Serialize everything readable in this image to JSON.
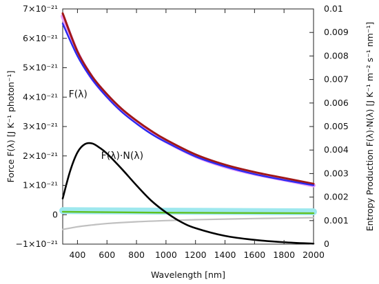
{
  "chart_data": {
    "type": "line",
    "xlabel": "Wavelength [nm]",
    "ylabel_left": "Force F(λ) [J K⁻¹ photon⁻¹]",
    "ylabel_right": "Entropy Production F(λ)·N(λ) [J K⁻¹ m⁻² s⁻¹ nm⁻¹]",
    "xlim": [
      300,
      2000
    ],
    "ylim_left": [
      -1e-21,
      7e-21
    ],
    "ylim_right": [
      0,
      0.01
    ],
    "x_ticks": [
      "400",
      "600",
      "800",
      "1000",
      "1200",
      "1400",
      "1600",
      "1800",
      "2000"
    ],
    "y_left_ticks": [
      "−1×10⁻²¹",
      "0",
      "1×10⁻²¹",
      "2×10⁻²¹",
      "3×10⁻²¹",
      "4×10⁻²¹",
      "5×10⁻²¹",
      "6×10⁻²¹",
      "7×10⁻²¹"
    ],
    "y_right_ticks": [
      "0",
      "0.001",
      "0.002",
      "0.003",
      "0.004",
      "0.005",
      "0.006",
      "0.007",
      "0.008",
      "0.009",
      "0.01"
    ],
    "grid": false,
    "annotations": [
      {
        "text": "F(λ)",
        "x": 340,
        "y": 4e-21
      },
      {
        "text": "F(λ)·N(λ)",
        "x": 560,
        "y": 1.9e-21
      }
    ],
    "series": [
      {
        "axis": "left",
        "color": "#e8a0ff",
        "x": [
          300,
          400,
          500,
          600,
          700,
          800,
          900,
          1000,
          1200,
          1400,
          1600,
          1800,
          2000
        ],
        "y": [
          6.75e-21,
          5.5e-21,
          4.65e-21,
          4.05e-21,
          3.55e-21,
          3.15e-21,
          2.8e-21,
          2.5e-21,
          2e-21,
          1.65e-21,
          1.4e-21,
          1.2e-21,
          1e-21
        ]
      },
      {
        "axis": "left",
        "color": "#a01818",
        "x": [
          300,
          400,
          500,
          600,
          700,
          800,
          900,
          1000,
          1200,
          1400,
          1600,
          1800,
          2000
        ],
        "y": [
          6.85e-21,
          5.55e-21,
          4.7e-21,
          4.1e-21,
          3.6e-21,
          3.2e-21,
          2.85e-21,
          2.55e-21,
          2.05e-21,
          1.7e-21,
          1.45e-21,
          1.25e-21,
          1.05e-21
        ]
      },
      {
        "axis": "left",
        "color": "#2a2aee",
        "x": [
          300,
          400,
          500,
          600,
          700,
          800,
          900,
          1000,
          1200,
          1400,
          1600,
          1800,
          2000
        ],
        "y": [
          6.5e-21,
          5.4e-21,
          4.6e-21,
          4e-21,
          3.5e-21,
          3.1e-21,
          2.75e-21,
          2.47e-21,
          1.98e-21,
          1.64e-21,
          1.38e-21,
          1.18e-21,
          1e-21
        ]
      },
      {
        "axis": "left",
        "color": "#9ee8ee",
        "x": [
          300,
          1000,
          2000
        ],
        "y": [
          1.4e-22,
          1.2e-22,
          1e-22
        ]
      },
      {
        "axis": "left",
        "color": "#60c020",
        "x": [
          300,
          1000,
          2000
        ],
        "y": [
          1e-22,
          7e-23,
          5e-23
        ]
      },
      {
        "axis": "left",
        "color": "#c0c0c0",
        "x": [
          300,
          400,
          500,
          600,
          800,
          1000,
          1200,
          1400,
          1600,
          1800,
          2000
        ],
        "y": [
          -5e-22,
          -4.1e-22,
          -3.5e-22,
          -3e-22,
          -2.4e-22,
          -2e-22,
          -1.7e-22,
          -1.5e-22,
          -1.3e-22,
          -1.15e-22,
          -1e-22
        ]
      },
      {
        "axis": "right",
        "color": "#000000",
        "x": [
          300,
          350,
          400,
          450,
          500,
          550,
          600,
          700,
          800,
          900,
          1000,
          1100,
          1200,
          1400,
          1600,
          1800,
          2000
        ],
        "y": [
          0.00194,
          0.0031,
          0.0039,
          0.00425,
          0.00428,
          0.0041,
          0.00385,
          0.0032,
          0.0025,
          0.00185,
          0.00135,
          0.00095,
          0.00068,
          0.00035,
          0.00018,
          8e-05,
          2e-05
        ]
      }
    ]
  }
}
